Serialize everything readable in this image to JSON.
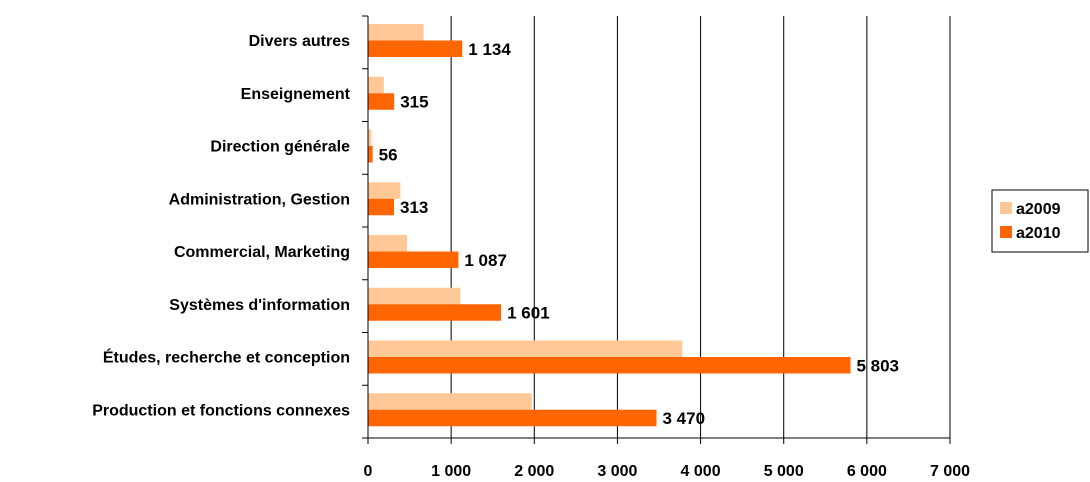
{
  "chart_data": {
    "type": "bar",
    "orientation": "horizontal",
    "categories": [
      "Divers autres",
      "Enseignement",
      "Direction générale",
      "Administration, Gestion",
      "Commercial, Marketing",
      "Systèmes d'information",
      "Études, recherche et conception",
      "Production et fonctions connexes"
    ],
    "series": [
      {
        "name": "a2009",
        "color": "#FFC896",
        "values": [
          670,
          190,
          40,
          390,
          470,
          1110,
          3780,
          1970
        ],
        "show_labels": false
      },
      {
        "name": "a2010",
        "color": "#FF6600",
        "values": [
          1134,
          315,
          56,
          313,
          1087,
          1601,
          5803,
          3470
        ],
        "show_labels": true
      }
    ],
    "data_labels": [
      "1 134",
      "315",
      "56",
      "313",
      "1 087",
      "1 601",
      "5 803",
      "3 470"
    ],
    "xlim": [
      0,
      7000
    ],
    "xticks": [
      0,
      1000,
      2000,
      3000,
      4000,
      5000,
      6000,
      7000
    ],
    "xtick_labels": [
      "0",
      "1 000",
      "2 000",
      "3 000",
      "4 000",
      "5 000",
      "6 000",
      "7 000"
    ],
    "grid": "vertical",
    "legend": {
      "position": "right",
      "items": [
        "a2009",
        "a2010"
      ]
    }
  }
}
